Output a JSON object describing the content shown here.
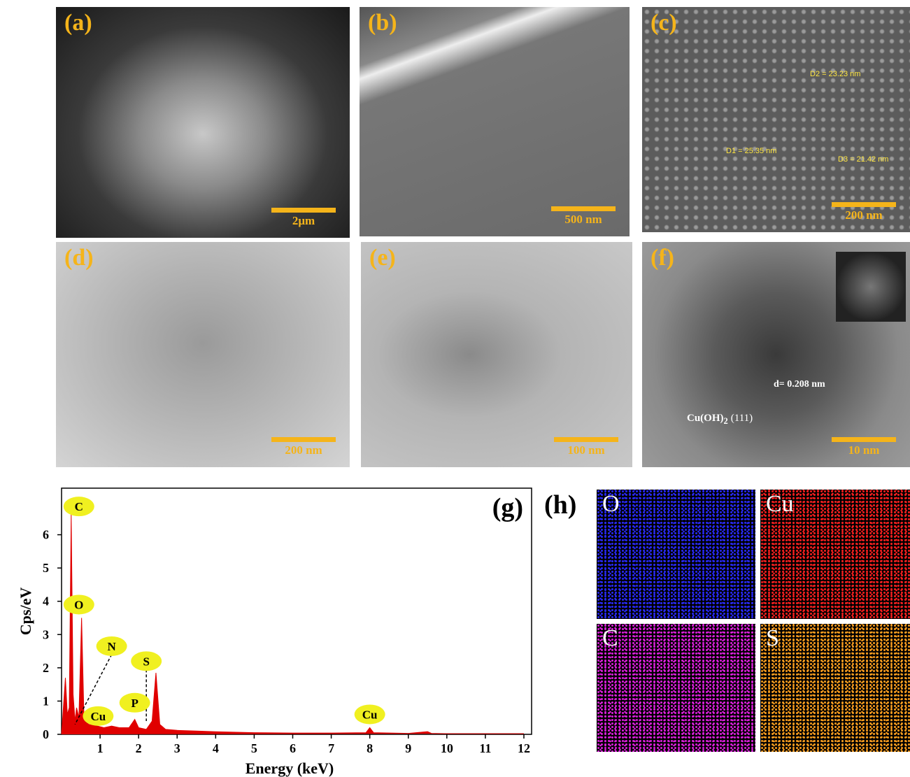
{
  "panels": [
    {
      "label": "(a)",
      "scale_bar": "2μm"
    },
    {
      "label": "(b)",
      "scale_bar": "500 nm"
    },
    {
      "label": "(c)",
      "scale_bar": "200 nm",
      "annotations": [
        "D2 = 23.23 nm",
        "D1 = 25.35 nm",
        "D3 = 21.42 nm"
      ]
    },
    {
      "label": "(d)",
      "scale_bar": "200 nm"
    },
    {
      "label": "(e)",
      "scale_bar": "100 nm"
    },
    {
      "label": "(f)",
      "scale_bar": "10 nm",
      "annotations": [
        "d= 0.208 nm"
      ],
      "plane": {
        "formula": "Cu(OH)",
        "subscript": "2",
        "index": "(111)"
      }
    }
  ],
  "chart_data": {
    "type": "area",
    "label": "(g)",
    "x_label": "Energy (keV)",
    "y_label": "Cps/eV",
    "x": [
      0,
      0.1,
      0.15,
      0.2,
      0.25,
      0.3,
      0.35,
      0.39,
      0.45,
      0.52,
      0.58,
      0.7,
      0.93,
      1.1,
      1.3,
      1.5,
      1.75,
      1.9,
      2.0,
      2.2,
      2.35,
      2.45,
      2.55,
      2.7,
      3.0,
      3.5,
      4.0,
      5,
      6,
      7,
      7.9,
      8.0,
      8.1,
      9,
      9.5,
      9.6,
      10,
      11,
      12
    ],
    "y": [
      0,
      1.7,
      0.6,
      0.8,
      6.6,
      1.2,
      0.4,
      0.8,
      0.5,
      3.5,
      0.6,
      0.3,
      0.25,
      0.2,
      0.25,
      0.2,
      0.2,
      0.45,
      0.2,
      0.15,
      0.4,
      1.85,
      0.3,
      0.15,
      0.12,
      0.1,
      0.08,
      0.05,
      0.04,
      0.04,
      0.05,
      0.2,
      0.05,
      0.03,
      0.08,
      0.03,
      0.02,
      0.02,
      0.02
    ],
    "color": "#e00000",
    "xlim": [
      0,
      12.2
    ],
    "ylim": [
      0,
      7.4
    ],
    "xticks": [
      1,
      2,
      3,
      4,
      5,
      6,
      7,
      8,
      9,
      10,
      11,
      12
    ],
    "yticks": [
      0,
      1,
      2,
      3,
      4,
      5,
      6
    ],
    "peak_labels": [
      "C",
      "O",
      "N",
      "S",
      "P",
      "Cu",
      "Cu"
    ]
  },
  "mapping": {
    "label": "(h)",
    "elements": [
      {
        "symbol": "O",
        "color": "#2a2aff"
      },
      {
        "symbol": "Cu",
        "color": "#ff2020"
      },
      {
        "symbol": "C",
        "color": "#e020e0"
      },
      {
        "symbol": "S",
        "color": "#ffa020"
      }
    ]
  }
}
